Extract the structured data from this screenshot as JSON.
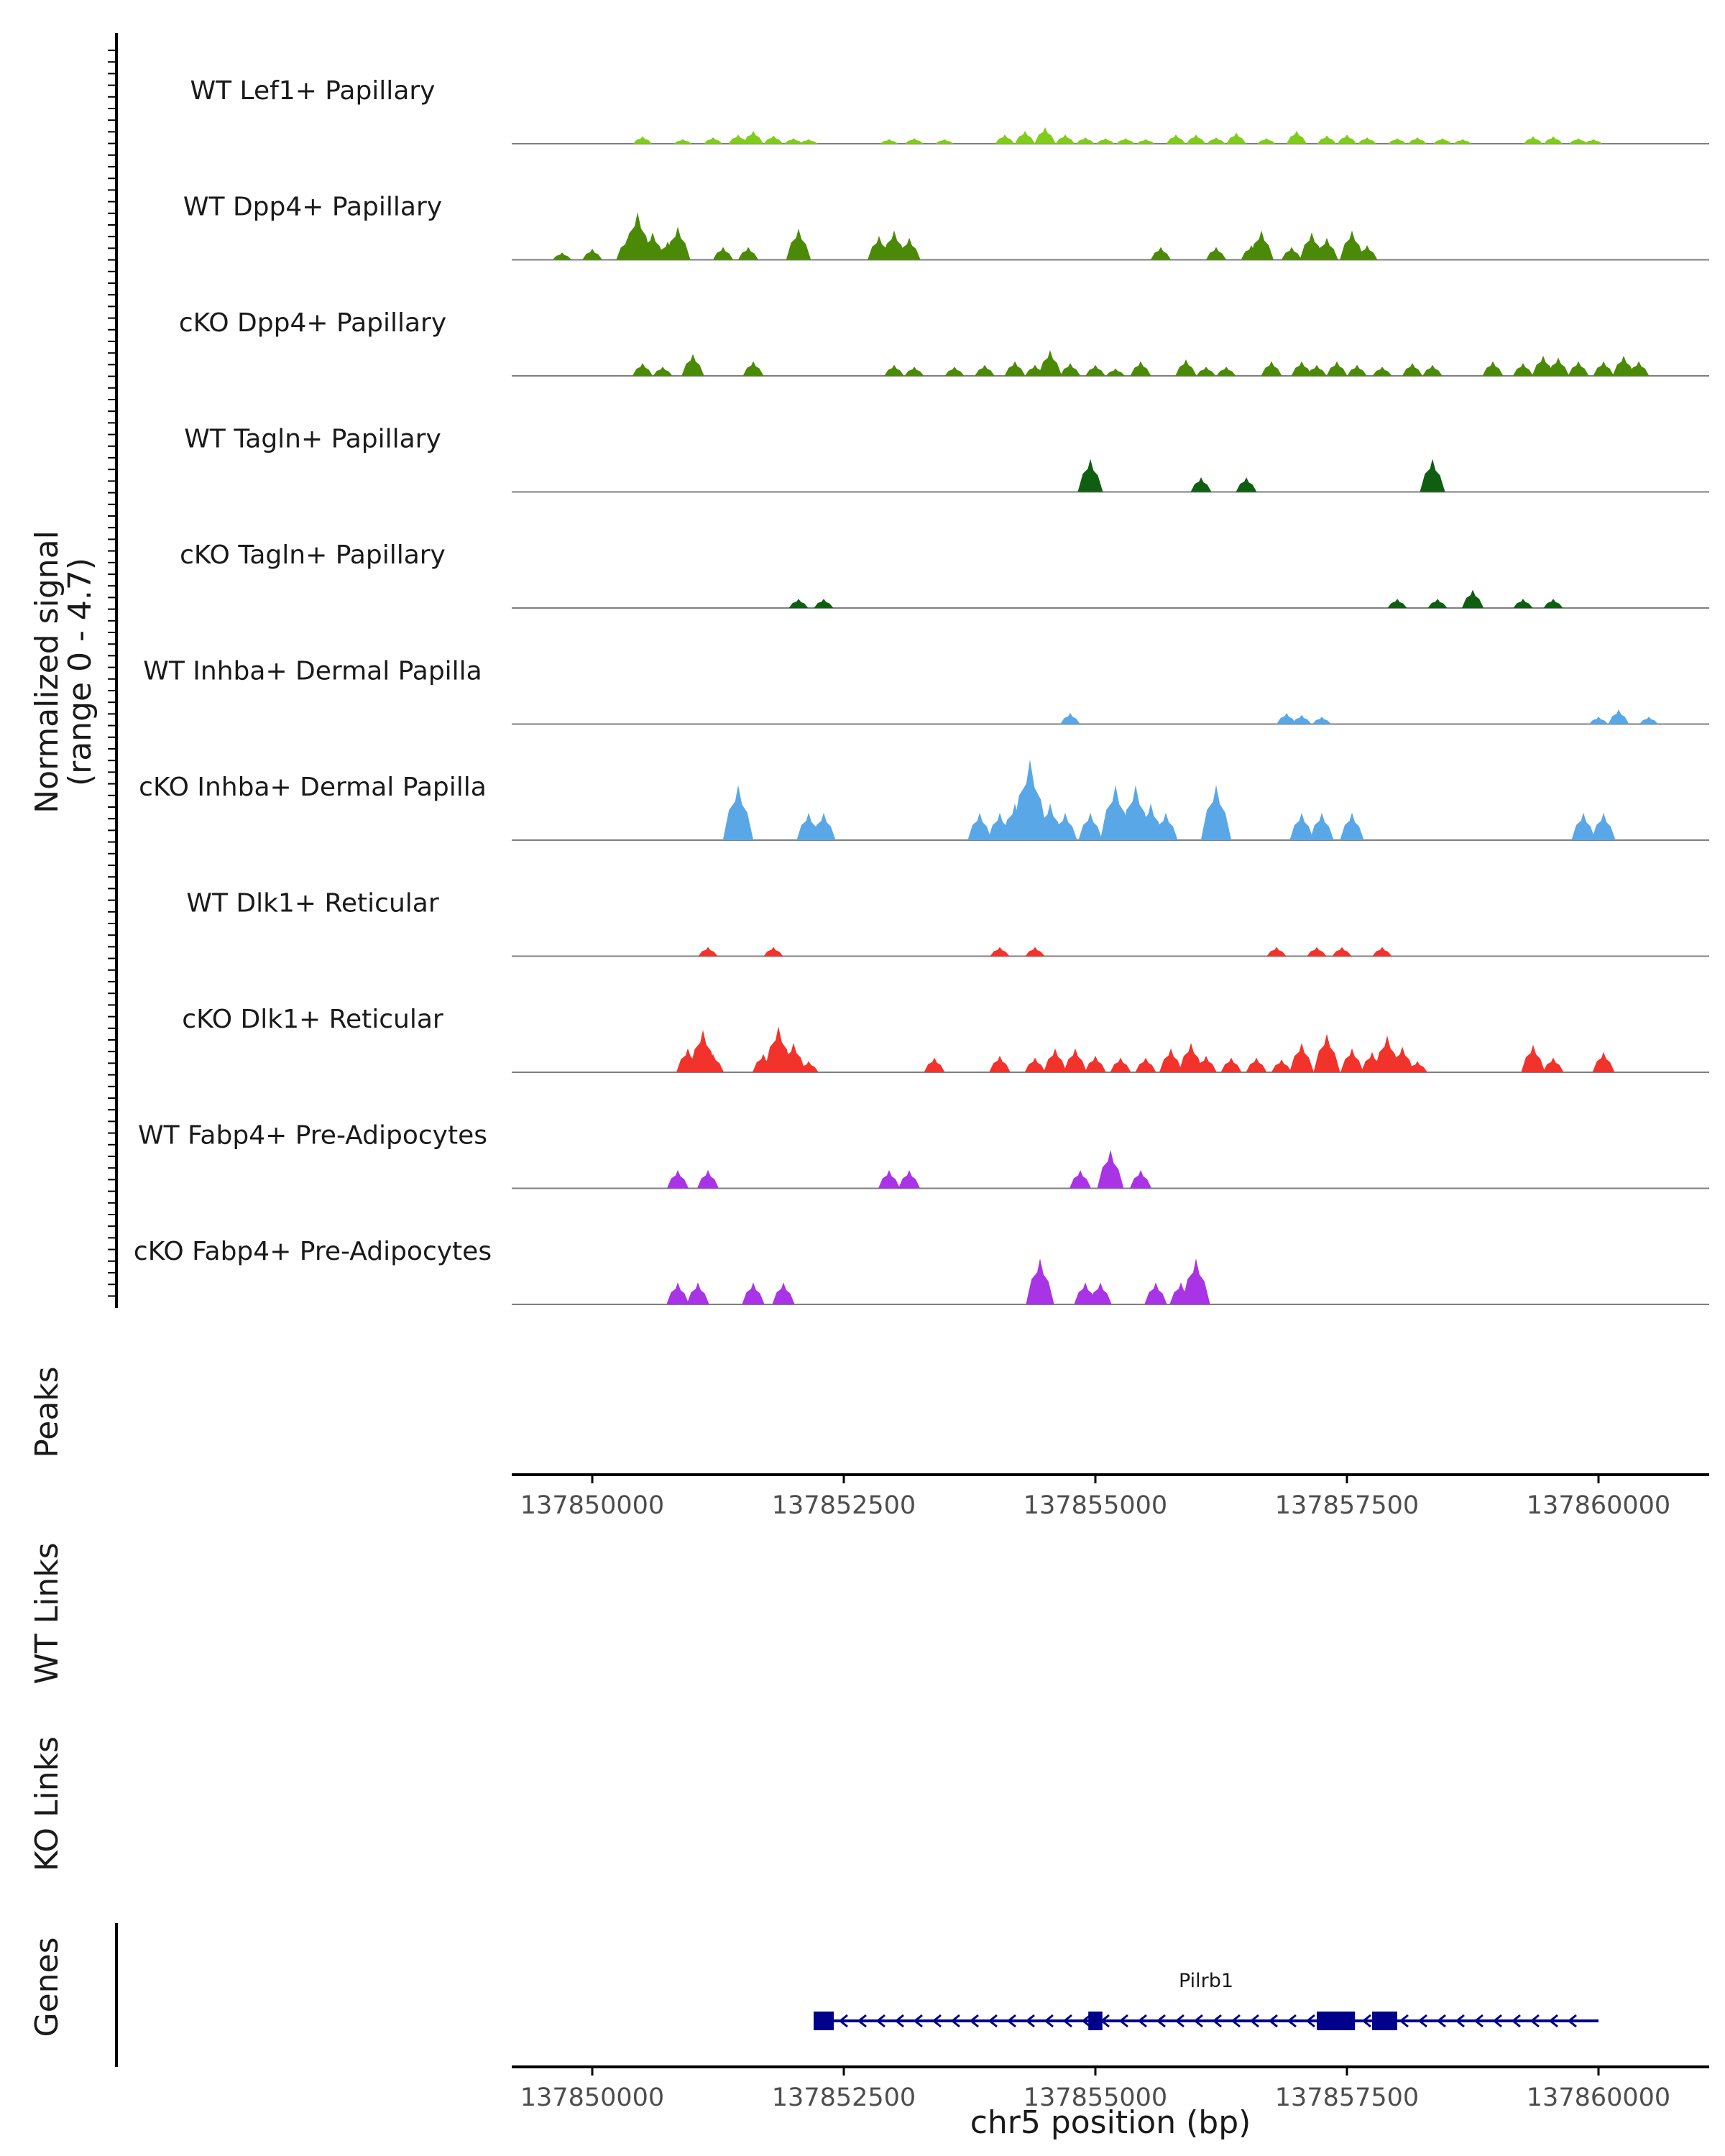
{
  "chart_data": {
    "type": "area",
    "title": "",
    "ylabel": "Normalized signal",
    "ylabel_range": "(range 0 - 4.7)",
    "xlabel": "chr5 position (bp)",
    "xlim": [
      137849200,
      137861100
    ],
    "ylim": [
      0,
      4.7
    ],
    "x_ticks": [
      137850000,
      137852500,
      137855000,
      137857500,
      137860000
    ],
    "x_tick_labels": [
      "137850000",
      "137852500",
      "137855000",
      "137857500",
      "137860000"
    ],
    "side_labels": {
      "peaks": "Peaks",
      "wt_links": "WT Links",
      "ko_links": "KO Links",
      "genes": "Genes"
    },
    "series": [
      {
        "name": "WT Lef1+ Papillary",
        "color": "#7FCC1A",
        "peaks": [
          [
            137850500,
            0.4
          ],
          [
            137850900,
            0.25
          ],
          [
            137851200,
            0.35
          ],
          [
            137851450,
            0.5
          ],
          [
            137851600,
            0.7
          ],
          [
            137851800,
            0.45
          ],
          [
            137852000,
            0.3
          ],
          [
            137852150,
            0.25
          ],
          [
            137852950,
            0.25
          ],
          [
            137853200,
            0.3
          ],
          [
            137853500,
            0.25
          ],
          [
            137854100,
            0.5
          ],
          [
            137854300,
            0.7
          ],
          [
            137854500,
            0.9
          ],
          [
            137854700,
            0.5
          ],
          [
            137854900,
            0.35
          ],
          [
            137855100,
            0.3
          ],
          [
            137855300,
            0.3
          ],
          [
            137855500,
            0.25
          ],
          [
            137855800,
            0.5
          ],
          [
            137856000,
            0.5
          ],
          [
            137856200,
            0.35
          ],
          [
            137856400,
            0.6
          ],
          [
            137856700,
            0.3
          ],
          [
            137857000,
            0.7
          ],
          [
            137857300,
            0.45
          ],
          [
            137857500,
            0.5
          ],
          [
            137857700,
            0.35
          ],
          [
            137858000,
            0.3
          ],
          [
            137858200,
            0.35
          ],
          [
            137858450,
            0.3
          ],
          [
            137858650,
            0.25
          ],
          [
            137859350,
            0.4
          ],
          [
            137859550,
            0.4
          ],
          [
            137859800,
            0.3
          ],
          [
            137859950,
            0.25
          ]
        ]
      },
      {
        "name": "WT Dpp4+ Papillary",
        "color": "#4A8A06",
        "peaks": [
          [
            137849700,
            0.4
          ],
          [
            137850000,
            0.6
          ],
          [
            137850350,
            1.2
          ],
          [
            137850450,
            2.6
          ],
          [
            137850600,
            1.5
          ],
          [
            137850750,
            1.0
          ],
          [
            137850850,
            1.8
          ],
          [
            137851300,
            0.7
          ],
          [
            137851550,
            0.7
          ],
          [
            137852050,
            1.7
          ],
          [
            137852850,
            1.3
          ],
          [
            137853000,
            1.6
          ],
          [
            137853150,
            1.2
          ],
          [
            137855650,
            0.7
          ],
          [
            137856200,
            0.7
          ],
          [
            137856550,
            0.8
          ],
          [
            137856650,
            1.6
          ],
          [
            137856950,
            0.7
          ],
          [
            137857150,
            1.5
          ],
          [
            137857300,
            1.2
          ],
          [
            137857550,
            1.6
          ],
          [
            137857700,
            0.8
          ]
        ]
      },
      {
        "name": "cKO Dpp4+ Papillary",
        "color": "#4A8A06",
        "peaks": [
          [
            137850500,
            0.7
          ],
          [
            137850700,
            0.5
          ],
          [
            137851000,
            1.2
          ],
          [
            137851600,
            0.8
          ],
          [
            137853000,
            0.6
          ],
          [
            137853200,
            0.5
          ],
          [
            137853600,
            0.5
          ],
          [
            137853900,
            0.6
          ],
          [
            137854200,
            0.8
          ],
          [
            137854400,
            0.6
          ],
          [
            137854550,
            1.4
          ],
          [
            137854750,
            0.7
          ],
          [
            137855000,
            0.6
          ],
          [
            137855200,
            0.4
          ],
          [
            137855450,
            0.8
          ],
          [
            137855900,
            0.9
          ],
          [
            137856100,
            0.5
          ],
          [
            137856300,
            0.5
          ],
          [
            137856750,
            0.8
          ],
          [
            137857050,
            0.8
          ],
          [
            137857200,
            0.6
          ],
          [
            137857400,
            0.8
          ],
          [
            137857600,
            0.6
          ],
          [
            137857850,
            0.5
          ],
          [
            137858150,
            0.7
          ],
          [
            137858350,
            0.6
          ],
          [
            137858950,
            0.8
          ],
          [
            137859250,
            0.7
          ],
          [
            137859450,
            1.1
          ],
          [
            137859600,
            1.0
          ],
          [
            137859800,
            0.8
          ],
          [
            137860050,
            0.8
          ],
          [
            137860250,
            1.1
          ],
          [
            137860400,
            0.8
          ]
        ]
      },
      {
        "name": "WT Tagln+ Papillary",
        "color": "#0F5E12",
        "peaks": [
          [
            137854950,
            1.8
          ],
          [
            137856050,
            0.8
          ],
          [
            137856500,
            0.8
          ],
          [
            137858350,
            1.8
          ]
        ]
      },
      {
        "name": "cKO Tagln+ Papillary",
        "color": "#0F5E12",
        "peaks": [
          [
            137852050,
            0.5
          ],
          [
            137852300,
            0.5
          ],
          [
            137858000,
            0.5
          ],
          [
            137858400,
            0.5
          ],
          [
            137858750,
            1.0
          ],
          [
            137859250,
            0.5
          ],
          [
            137859550,
            0.5
          ]
        ]
      },
      {
        "name": "WT Inhba+ Dermal Papilla",
        "color": "#59A7E6",
        "peaks": [
          [
            137854750,
            0.6
          ],
          [
            137856900,
            0.6
          ],
          [
            137857050,
            0.5
          ],
          [
            137857250,
            0.4
          ],
          [
            137860000,
            0.4
          ],
          [
            137860200,
            0.8
          ],
          [
            137860500,
            0.4
          ]
        ]
      },
      {
        "name": "cKO Inhba+ Dermal Papilla",
        "color": "#59A7E6",
        "peaks": [
          [
            137851450,
            3.0
          ],
          [
            137852150,
            1.5
          ],
          [
            137852300,
            1.5
          ],
          [
            137853850,
            1.5
          ],
          [
            137854050,
            1.5
          ],
          [
            137854200,
            2.0
          ],
          [
            137854350,
            4.4
          ],
          [
            137854550,
            2.0
          ],
          [
            137854700,
            1.5
          ],
          [
            137854950,
            1.5
          ],
          [
            137855200,
            3.0
          ],
          [
            137855400,
            3.0
          ],
          [
            137855550,
            2.0
          ],
          [
            137855700,
            1.5
          ],
          [
            137856200,
            3.0
          ],
          [
            137857050,
            1.5
          ],
          [
            137857250,
            1.5
          ],
          [
            137857550,
            1.5
          ],
          [
            137859850,
            1.5
          ],
          [
            137860050,
            1.5
          ]
        ]
      },
      {
        "name": "WT Dlk1+ Reticular",
        "color": "#F2332B",
        "peaks": [
          [
            137851150,
            0.5
          ],
          [
            137851800,
            0.5
          ],
          [
            137854050,
            0.5
          ],
          [
            137854400,
            0.5
          ],
          [
            137856800,
            0.5
          ],
          [
            137857200,
            0.5
          ],
          [
            137857450,
            0.5
          ],
          [
            137857850,
            0.5
          ]
        ]
      },
      {
        "name": "cKO Dlk1+ Reticular",
        "color": "#F2332B",
        "peaks": [
          [
            137850950,
            1.3
          ],
          [
            137851100,
            2.3
          ],
          [
            137851200,
            1.0
          ],
          [
            137851700,
            1.0
          ],
          [
            137851850,
            2.5
          ],
          [
            137852000,
            1.6
          ],
          [
            137852150,
            0.6
          ],
          [
            137853400,
            0.8
          ],
          [
            137854050,
            0.9
          ],
          [
            137854400,
            0.8
          ],
          [
            137854600,
            1.3
          ],
          [
            137854800,
            1.3
          ],
          [
            137855000,
            0.9
          ],
          [
            137855250,
            0.8
          ],
          [
            137855500,
            0.8
          ],
          [
            137855750,
            1.3
          ],
          [
            137855950,
            1.6
          ],
          [
            137856100,
            0.9
          ],
          [
            137856350,
            0.8
          ],
          [
            137856600,
            0.8
          ],
          [
            137856850,
            0.7
          ],
          [
            137857050,
            1.6
          ],
          [
            137857300,
            2.1
          ],
          [
            137857550,
            1.3
          ],
          [
            137857750,
            1.1
          ],
          [
            137857900,
            2.0
          ],
          [
            137858050,
            1.4
          ],
          [
            137858200,
            0.6
          ],
          [
            137859350,
            1.5
          ],
          [
            137859550,
            0.8
          ],
          [
            137860050,
            1.1
          ]
        ]
      },
      {
        "name": "WT Fabp4+ Pre-Adipocytes",
        "color": "#A834E6",
        "peaks": [
          [
            137850850,
            1.0
          ],
          [
            137851150,
            1.0
          ],
          [
            137852950,
            1.0
          ],
          [
            137853150,
            1.0
          ],
          [
            137854850,
            1.0
          ],
          [
            137855150,
            2.1
          ],
          [
            137855450,
            1.0
          ]
        ]
      },
      {
        "name": "cKO Fabp4+ Pre-Adipocytes",
        "color": "#A834E6",
        "peaks": [
          [
            137850850,
            1.2
          ],
          [
            137851050,
            1.2
          ],
          [
            137851600,
            1.2
          ],
          [
            137851900,
            1.2
          ],
          [
            137854450,
            2.5
          ],
          [
            137854900,
            1.2
          ],
          [
            137855050,
            1.2
          ],
          [
            137855600,
            1.2
          ],
          [
            137855850,
            1.2
          ],
          [
            137856000,
            2.5
          ]
        ]
      }
    ],
    "gene": {
      "name": "Pilrb1",
      "strand": "-",
      "color": "#00008B",
      "start": 137852200,
      "end": 137860000,
      "exons": [
        [
          137852200,
          137852400
        ],
        [
          137854930,
          137855070
        ],
        [
          137857200,
          137857580
        ],
        [
          137857750,
          137857950
        ],
        [
          137857950,
          137858000
        ]
      ]
    }
  }
}
